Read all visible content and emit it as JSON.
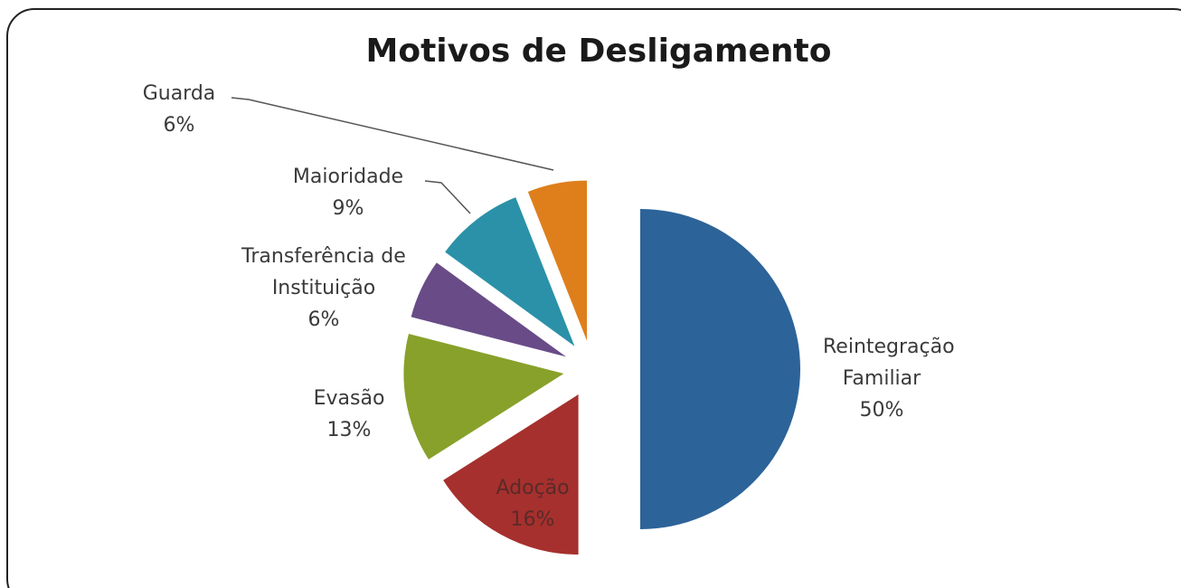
{
  "chart_data": {
    "type": "pie",
    "title": "Motivos de Desligamento",
    "categories": [
      "Reintegração Familiar",
      "Adoção",
      "Evasão",
      "Transferência de Instituição",
      "Maioridade",
      "Guarda"
    ],
    "values": [
      50,
      16,
      13,
      6,
      9,
      6
    ],
    "value_labels": [
      "50%",
      "16%",
      "13%",
      "6%",
      "9%",
      "6%"
    ],
    "colors": [
      "#2c6399",
      "#a6302d",
      "#88a12a",
      "#684b87",
      "#2b91a8",
      "#de7f1c"
    ]
  }
}
